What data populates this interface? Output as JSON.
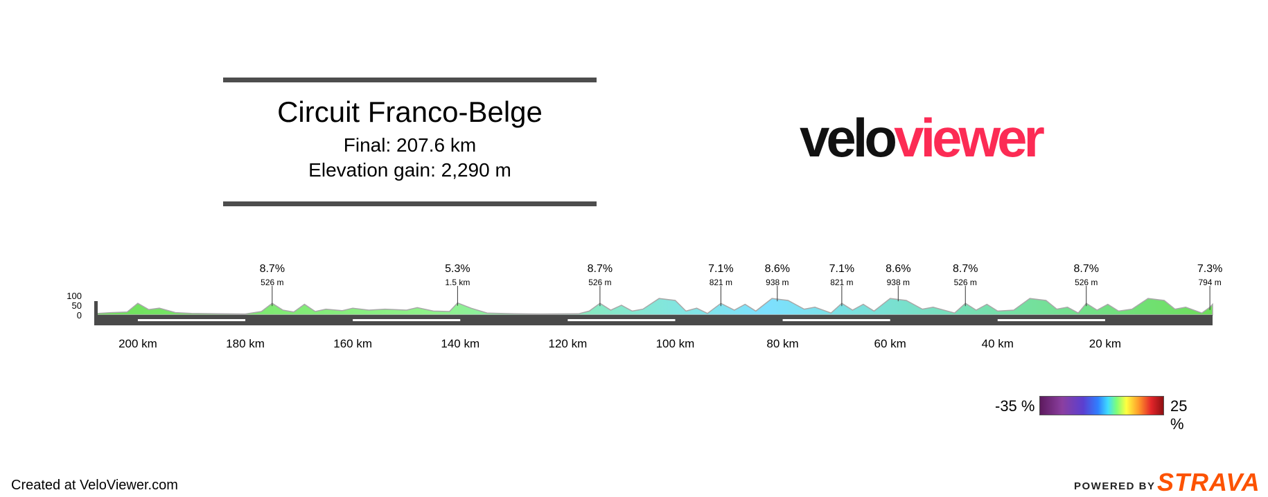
{
  "header": {
    "title": "Circuit Franco-Belge",
    "distance_line": "Final: 207.6 km",
    "elevation_line": "Elevation gain: 2,290 m"
  },
  "logo": {
    "part1": "velo",
    "part2": "viewer",
    "color1": "#111111",
    "color2": "#fc2b54"
  },
  "footer": {
    "created": "Created at VeloViewer.com",
    "powered": "POWERED BY",
    "strava": "STRAVA"
  },
  "legend": {
    "min_label": "-35 %",
    "max_label": "25 %"
  },
  "chart_data": {
    "type": "area",
    "title": "",
    "xlabel": "",
    "ylabel": "",
    "x_unit": "km remaining",
    "x_reversed": true,
    "xlim": [
      207.6,
      0
    ],
    "ylim": [
      0,
      100
    ],
    "x_ticks": [
      {
        "value": 200,
        "label": "200 km"
      },
      {
        "value": 180,
        "label": "180 km"
      },
      {
        "value": 160,
        "label": "160 km"
      },
      {
        "value": 140,
        "label": "140 km"
      },
      {
        "value": 120,
        "label": "120 km"
      },
      {
        "value": 100,
        "label": "100 km"
      },
      {
        "value": 80,
        "label": "80 km"
      },
      {
        "value": 60,
        "label": "60 km"
      },
      {
        "value": 40,
        "label": "40 km"
      },
      {
        "value": 20,
        "label": "20 km"
      }
    ],
    "y_ticks": [
      {
        "value": 0,
        "label": "0"
      },
      {
        "value": 50,
        "label": "50"
      },
      {
        "value": 100,
        "label": "100"
      }
    ],
    "climbs": [
      {
        "km": 175,
        "gradient": "8.7%",
        "length": "526 m"
      },
      {
        "km": 140.5,
        "gradient": "5.3%",
        "length": "1.5 km"
      },
      {
        "km": 114,
        "gradient": "8.7%",
        "length": "526 m"
      },
      {
        "km": 91.5,
        "gradient": "7.1%",
        "length": "821 m"
      },
      {
        "km": 81,
        "gradient": "8.6%",
        "length": "938 m"
      },
      {
        "km": 69,
        "gradient": "7.1%",
        "length": "821 m"
      },
      {
        "km": 58.5,
        "gradient": "8.6%",
        "length": "938 m"
      },
      {
        "km": 46,
        "gradient": "8.7%",
        "length": "526 m"
      },
      {
        "km": 23.5,
        "gradient": "8.7%",
        "length": "526 m"
      },
      {
        "km": 0.5,
        "gradient": "7.3%",
        "length": "794 m"
      }
    ],
    "profile": [
      {
        "km": 207.6,
        "elev": 8
      },
      {
        "km": 205,
        "elev": 12
      },
      {
        "km": 202,
        "elev": 15
      },
      {
        "km": 200,
        "elev": 60
      },
      {
        "km": 198,
        "elev": 28
      },
      {
        "km": 196,
        "elev": 35
      },
      {
        "km": 193,
        "elev": 12
      },
      {
        "km": 190,
        "elev": 8
      },
      {
        "km": 185,
        "elev": 6
      },
      {
        "km": 180,
        "elev": 5
      },
      {
        "km": 177,
        "elev": 18
      },
      {
        "km": 175,
        "elev": 60
      },
      {
        "km": 173,
        "elev": 25
      },
      {
        "km": 171,
        "elev": 15
      },
      {
        "km": 169,
        "elev": 55
      },
      {
        "km": 167,
        "elev": 18
      },
      {
        "km": 165,
        "elev": 30
      },
      {
        "km": 162,
        "elev": 22
      },
      {
        "km": 160,
        "elev": 35
      },
      {
        "km": 157,
        "elev": 25
      },
      {
        "km": 154,
        "elev": 30
      },
      {
        "km": 150,
        "elev": 25
      },
      {
        "km": 148,
        "elev": 38
      },
      {
        "km": 145,
        "elev": 20
      },
      {
        "km": 142,
        "elev": 18
      },
      {
        "km": 140.5,
        "elev": 62
      },
      {
        "km": 138,
        "elev": 35
      },
      {
        "km": 135,
        "elev": 10
      },
      {
        "km": 130,
        "elev": 6
      },
      {
        "km": 125,
        "elev": 5
      },
      {
        "km": 118,
        "elev": 6
      },
      {
        "km": 116,
        "elev": 20
      },
      {
        "km": 114,
        "elev": 60
      },
      {
        "km": 112,
        "elev": 25
      },
      {
        "km": 110,
        "elev": 50
      },
      {
        "km": 108,
        "elev": 20
      },
      {
        "km": 106,
        "elev": 30
      },
      {
        "km": 103,
        "elev": 85
      },
      {
        "km": 100,
        "elev": 75
      },
      {
        "km": 98,
        "elev": 20
      },
      {
        "km": 96,
        "elev": 35
      },
      {
        "km": 94,
        "elev": 8
      },
      {
        "km": 91.5,
        "elev": 60
      },
      {
        "km": 89,
        "elev": 25
      },
      {
        "km": 87,
        "elev": 55
      },
      {
        "km": 85,
        "elev": 20
      },
      {
        "km": 82,
        "elev": 85
      },
      {
        "km": 79,
        "elev": 75
      },
      {
        "km": 76,
        "elev": 30
      },
      {
        "km": 74,
        "elev": 40
      },
      {
        "km": 71,
        "elev": 10
      },
      {
        "km": 69,
        "elev": 60
      },
      {
        "km": 67,
        "elev": 25
      },
      {
        "km": 65,
        "elev": 55
      },
      {
        "km": 63,
        "elev": 20
      },
      {
        "km": 60,
        "elev": 85
      },
      {
        "km": 57,
        "elev": 75
      },
      {
        "km": 54,
        "elev": 30
      },
      {
        "km": 52,
        "elev": 40
      },
      {
        "km": 48,
        "elev": 10
      },
      {
        "km": 46,
        "elev": 60
      },
      {
        "km": 44,
        "elev": 25
      },
      {
        "km": 42,
        "elev": 55
      },
      {
        "km": 40,
        "elev": 20
      },
      {
        "km": 37,
        "elev": 25
      },
      {
        "km": 34,
        "elev": 85
      },
      {
        "km": 31,
        "elev": 75
      },
      {
        "km": 29,
        "elev": 30
      },
      {
        "km": 27,
        "elev": 40
      },
      {
        "km": 25,
        "elev": 10
      },
      {
        "km": 23.5,
        "elev": 60
      },
      {
        "km": 21.5,
        "elev": 25
      },
      {
        "km": 19.5,
        "elev": 55
      },
      {
        "km": 17.5,
        "elev": 20
      },
      {
        "km": 15,
        "elev": 30
      },
      {
        "km": 12,
        "elev": 85
      },
      {
        "km": 9,
        "elev": 75
      },
      {
        "km": 7,
        "elev": 30
      },
      {
        "km": 5,
        "elev": 40
      },
      {
        "km": 2,
        "elev": 10
      },
      {
        "km": 0.5,
        "elev": 40
      },
      {
        "km": 0,
        "elev": 55
      }
    ],
    "grid": false,
    "legend": "colour scale bottom-right"
  }
}
